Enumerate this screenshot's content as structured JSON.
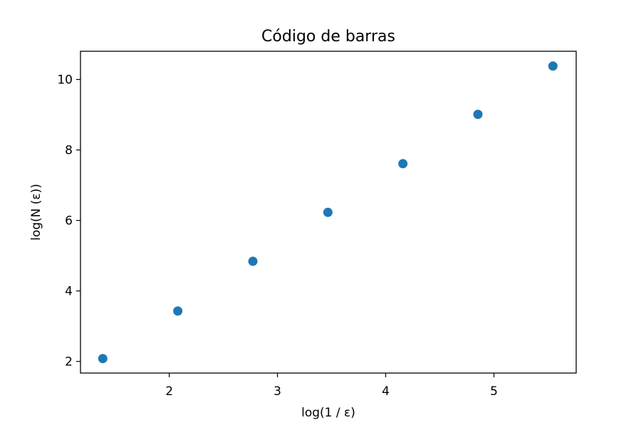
{
  "chart_data": {
    "type": "scatter",
    "title": "Código de barras",
    "xlabel": "log(1 / ε)",
    "ylabel": "log(N (ε))",
    "xlim": [
      1.18,
      5.76
    ],
    "ylim": [
      1.67,
      10.8
    ],
    "xticks": [
      2,
      3,
      4,
      5
    ],
    "yticks": [
      2,
      4,
      6,
      8,
      10
    ],
    "grid": false,
    "marker_color": "#1f77b4",
    "series": [
      {
        "x": [
          1.386,
          2.079,
          2.773,
          3.466,
          4.159,
          4.852,
          5.545
        ],
        "y": [
          2.08,
          3.43,
          4.84,
          6.23,
          7.61,
          9.01,
          10.38
        ]
      }
    ]
  }
}
